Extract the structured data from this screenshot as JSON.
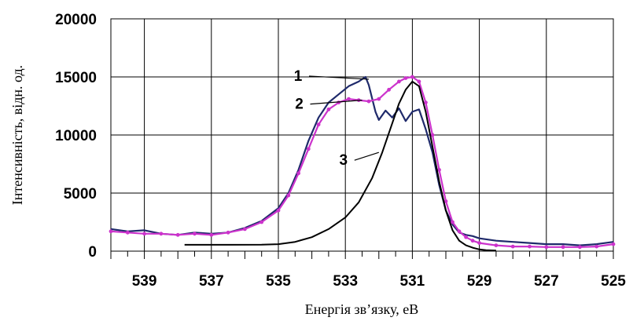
{
  "chart_data": {
    "type": "line",
    "title": "",
    "xlabel": "Енергія зв’язку, еВ",
    "ylabel": "Інтенсивність, відн. од.",
    "xlim": [
      540,
      525
    ],
    "ylim": [
      0,
      20000
    ],
    "x_reversed": true,
    "grid": true,
    "x_ticks": [
      "539",
      "537",
      "535",
      "533",
      "531",
      "529",
      "527",
      "525"
    ],
    "y_ticks": [
      "0",
      "5000",
      "10000",
      "15000",
      "20000"
    ],
    "annotations": [
      {
        "label": "1",
        "series_index": 0,
        "point": [
          532.3,
          14800
        ]
      },
      {
        "label": "2",
        "series_index": 1,
        "point": [
          532.5,
          13000
        ]
      },
      {
        "label": "3",
        "series_index": 2,
        "point": [
          532.0,
          8500
        ]
      }
    ],
    "series": [
      {
        "color": "#1f2a6b",
        "marker": "none",
        "x": [
          540,
          539.5,
          539,
          538.5,
          538,
          537.5,
          537,
          536.5,
          536,
          535.5,
          535,
          534.7,
          534.4,
          534.1,
          533.8,
          533.5,
          533.2,
          532.9,
          532.6,
          532.4,
          532.3,
          532.1,
          532.0,
          531.8,
          531.6,
          531.4,
          531.2,
          531.0,
          530.8,
          530.6,
          530.4,
          530.2,
          530.0,
          529.8,
          529.6,
          529.4,
          529.2,
          529.0,
          528.5,
          528,
          527.5,
          527,
          526.5,
          526,
          525.5,
          525
        ],
        "y": [
          1900,
          1700,
          1800,
          1500,
          1400,
          1600,
          1500,
          1600,
          2000,
          2600,
          3700,
          5000,
          7000,
          9500,
          11500,
          12800,
          13500,
          14200,
          14600,
          15000,
          14300,
          12000,
          11300,
          12100,
          11500,
          12300,
          11200,
          12000,
          12200,
          10500,
          8500,
          5700,
          3500,
          2300,
          1600,
          1400,
          1300,
          1100,
          900,
          800,
          700,
          600,
          600,
          500,
          600,
          800
        ]
      },
      {
        "color": "#cc33cc",
        "marker": "dot",
        "x": [
          540,
          539.5,
          539,
          538.5,
          538,
          537.5,
          537,
          536.5,
          536,
          535.5,
          535,
          534.7,
          534.4,
          534.1,
          533.8,
          533.5,
          533.2,
          532.9,
          532.6,
          532.3,
          532.0,
          531.7,
          531.4,
          531.2,
          531.0,
          530.8,
          530.6,
          530.4,
          530.2,
          530.0,
          529.8,
          529.6,
          529.4,
          529.2,
          529.0,
          528.5,
          528,
          527.5,
          527,
          526.5,
          526,
          525.5,
          525
        ],
        "y": [
          1700,
          1600,
          1500,
          1500,
          1400,
          1500,
          1400,
          1600,
          1900,
          2500,
          3500,
          4800,
          6700,
          8800,
          10900,
          12200,
          12800,
          13100,
          13000,
          12900,
          13100,
          13900,
          14600,
          14900,
          15000,
          14600,
          12800,
          10000,
          7000,
          4300,
          2500,
          1700,
          1200,
          900,
          700,
          500,
          400,
          400,
          350,
          350,
          350,
          400,
          600
        ]
      },
      {
        "color": "#000000",
        "marker": "none",
        "x": [
          537.8,
          536.5,
          535.5,
          535.0,
          534.5,
          534.0,
          533.5,
          533.0,
          532.6,
          532.2,
          531.9,
          531.6,
          531.4,
          531.2,
          531.0,
          530.8,
          530.6,
          530.4,
          530.2,
          530.0,
          529.8,
          529.6,
          529.4,
          529.2,
          529.0,
          528.8,
          528.5
        ],
        "y": [
          550,
          550,
          560,
          600,
          800,
          1200,
          1900,
          2900,
          4200,
          6300,
          8500,
          11000,
          12700,
          13900,
          14600,
          14200,
          12000,
          9000,
          6000,
          3500,
          1800,
          900,
          500,
          300,
          150,
          80,
          50
        ]
      }
    ]
  }
}
